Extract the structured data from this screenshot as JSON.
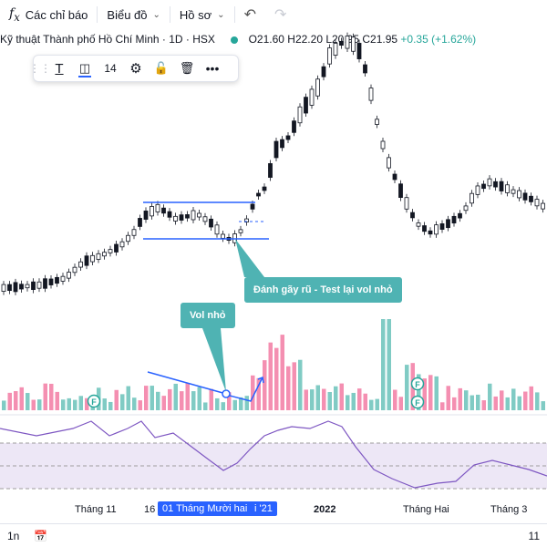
{
  "topbar": {
    "indicators_label": "Các chỉ báo",
    "chart_label": "Biểu đồ",
    "profile_label": "Hồ sơ"
  },
  "symbol": {
    "name": "Kỹ thuật Thành phố Hồ Chí Minh · 1D · HSX",
    "ohlc": "O21.60  H22.20  L20.95  C21.95",
    "change": "+0.35 (+1.62%)"
  },
  "draw_toolbar": {
    "font_size": "14"
  },
  "annotations": {
    "breakdown_label": "Đánh gãy rũ - Test lại vol nhỏ",
    "vol_label": "Vol nhỏ"
  },
  "xaxis": {
    "label_nov": "Tháng 11",
    "label_16": "16",
    "label_selected": "01 Tháng Mười hai '21",
    "label_21": "i '21",
    "label_2022": "2022",
    "label_feb": "Tháng Hai",
    "label_mar": "Tháng 3"
  },
  "bottombar": {
    "interval": "1n",
    "right_label": "11"
  },
  "colors": {
    "up": "#26a69a",
    "down": "#ef5350",
    "vol_up": "#80cbc4",
    "vol_down": "#f48fb1",
    "rsi": "#7e57c2",
    "drawing": "#2962ff",
    "callout": "#4fb3b3"
  }
}
